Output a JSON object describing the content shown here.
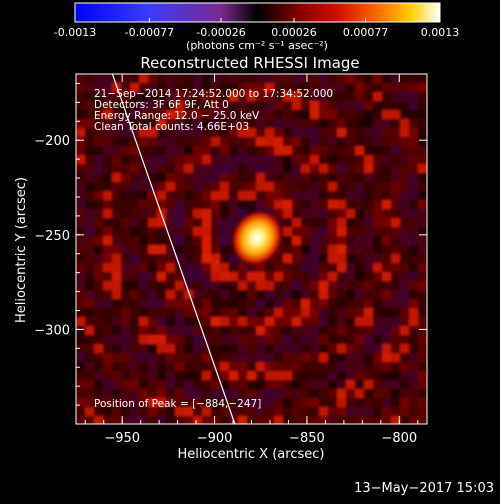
{
  "colorbar": {
    "ticks": [
      "-0.0013",
      "-0.00077",
      "-0.00026",
      "0.00026",
      "0.00077",
      "0.0013"
    ],
    "tick_values": [
      -0.0013,
      -0.00077,
      -0.00026,
      0.00026,
      0.00077,
      0.0013
    ],
    "range": [
      -0.0013,
      0.0013
    ],
    "colors": [
      "#0000ff",
      "#3030ff",
      "#7a2a8c",
      "#000000",
      "#5a0000",
      "#c80000",
      "#ff4000",
      "#ff9000",
      "#ffe000",
      "#ffffff"
    ]
  },
  "unit_label": "(photons cm⁻² s⁻¹ asec⁻²)",
  "chart_data": {
    "type": "heatmap",
    "title": "Reconstructed RHESSI Image",
    "xlabel": "Heliocentric X (arcsec)",
    "ylabel": "Heliocentric Y (arcsec)",
    "xlim": [
      -975,
      -785
    ],
    "ylim": [
      -350,
      -165
    ],
    "x_ticks": [
      -950,
      -900,
      -850,
      -800
    ],
    "y_ticks": [
      -200,
      -250,
      -300
    ],
    "x_tick_labels": [
      "−950",
      "−900",
      "−850",
      "−800"
    ],
    "y_tick_labels": [
      "−200",
      "−250",
      "−300"
    ],
    "peak": {
      "x": -884,
      "y": -247
    },
    "limb": [
      {
        "x": -956,
        "y": -163
      },
      {
        "x": -889,
        "y": -350
      }
    ],
    "annotations": [
      "21−Sep−2014 17:24:52.000 to 17:34:52.000",
      "Detectors: 3F 6F 9F, Att 0",
      "Energy Range: 12.0 − 25.0 keV",
      "Clean    Total counts: 4.66E+03"
    ],
    "peak_label": "Position of Peak = [−884,−247]"
  },
  "footer_date": "13−May−2017 15:03"
}
